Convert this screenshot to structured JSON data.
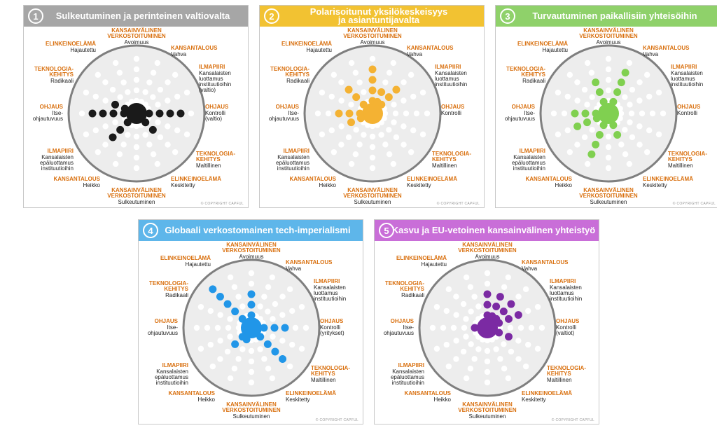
{
  "copyright": "© COPYRIGHT CAPFUL",
  "colors": {
    "orange_label": "#d9700f",
    "ring": "#7f7f7f",
    "disk": "#ededed",
    "ghost_dot": "#ffffff"
  },
  "panels": [
    {
      "number": "1",
      "title_lines": [
        "Sulkeutuminen ja perinteinen valtiovalta"
      ],
      "header_color": "#a6a6a6",
      "dot_color": "#1a1a1a",
      "labels": {
        "top": {
          "name": [
            "KANSAINVÄLINEN",
            "VERKOSTOITUMINEN"
          ],
          "value": [
            "Avoimuus"
          ]
        },
        "top_left": {
          "name": [
            "ELINKEINOELÄMÄ"
          ],
          "value": [
            "Hajautettu"
          ]
        },
        "top_right": {
          "name": [
            "KANSANTALOUS"
          ],
          "value": [
            "Vahva"
          ]
        },
        "upper_left": {
          "name": [
            "TEKNOLOGIA-",
            "KEHITYS"
          ],
          "value": [
            "Radikaali"
          ]
        },
        "upper_right": {
          "name": [
            "ILMAPIIRI"
          ],
          "value": [
            "Kansalaisten",
            "luottamus",
            "instituutioihin",
            "(valtio)"
          ]
        },
        "left": {
          "name": [
            "OHJAUS"
          ],
          "value": [
            "Itse-",
            "ohjautuvuus"
          ]
        },
        "right": {
          "name": [
            "OHJAUS"
          ],
          "value": [
            "Kontrolli",
            "(valtio)"
          ]
        },
        "lower_left": {
          "name": [
            "ILMAPIIRI"
          ],
          "value": [
            "Kansalaisten",
            "epäluottamus",
            "instituutioihin"
          ]
        },
        "lower_right": {
          "name": [
            "TEKNOLOGIA-",
            "KEHITYS"
          ],
          "value": [
            "Maltillinen"
          ]
        },
        "bottom_left": {
          "name": [
            "KANSANTALOUS"
          ],
          "value": [
            "Heikko"
          ]
        },
        "bottom_right": {
          "name": [
            "ELINKEINOELÄMÄ"
          ],
          "value": [
            "Keskitetty"
          ]
        },
        "bottom": {
          "name": [
            "KANSAINVÄLINEN",
            "VERKOSTOITUMINEN"
          ],
          "value": [
            "Sulkeutuminen"
          ]
        }
      },
      "dots": [
        {
          "a": 180,
          "r": 1,
          "b": true
        },
        {
          "a": 180,
          "r": 2
        },
        {
          "a": 180,
          "r": 3
        },
        {
          "a": 180,
          "r": 4
        },
        {
          "a": 180,
          "r": 5
        },
        {
          "a": 0,
          "r": 2
        },
        {
          "a": 0,
          "r": 3
        },
        {
          "a": 0,
          "r": 4
        },
        {
          "a": 0,
          "r": 5
        },
        {
          "a": 45,
          "r": 2
        },
        {
          "a": 45,
          "r": 3
        },
        {
          "a": 135,
          "r": 2
        },
        {
          "a": 135,
          "r": 3
        },
        {
          "a": 135,
          "r": 4
        },
        {
          "a": 202.5,
          "r": 2
        },
        {
          "a": 202.5,
          "r": 3
        }
      ]
    },
    {
      "number": "2",
      "title_lines": [
        "Polarisoitunut yksilökeskeisyys",
        "ja asiantuntijavalta"
      ],
      "header_color": "#f2c232",
      "dot_color": "#f4b233",
      "labels": {
        "top": {
          "name": [
            "KANSAINVÄLINEN",
            "VERKOSTOITUMINEN"
          ],
          "value": [
            "Avoimuus"
          ]
        },
        "top_left": {
          "name": [
            "ELINKEINOELÄMÄ"
          ],
          "value": [
            "Hajautettu"
          ]
        },
        "top_right": {
          "name": [
            "KANSANTALOUS"
          ],
          "value": [
            "Vahva"
          ]
        },
        "upper_left": {
          "name": [
            "TEKNOLOGIA-",
            "KEHITYS"
          ],
          "value": [
            "Radikaali"
          ]
        },
        "upper_right": {
          "name": [
            "ILMAPIIRI"
          ],
          "value": [
            "Kansalaisten",
            "luottamus",
            "instituutioihin"
          ]
        },
        "left": {
          "name": [
            "OHJAUS"
          ],
          "value": [
            "Itse-",
            "ohjautuvuus"
          ]
        },
        "right": {
          "name": [
            "OHJAUS"
          ],
          "value": [
            "Kontrolli"
          ]
        },
        "lower_left": {
          "name": [
            "ILMAPIIRI"
          ],
          "value": [
            "Kansalaisten",
            "epäluottamus",
            "instituutioihin"
          ]
        },
        "lower_right": {
          "name": [
            "TEKNOLOGIA-",
            "KEHITYS"
          ],
          "value": [
            "Maltillinen"
          ]
        },
        "bottom_left": {
          "name": [
            "KANSANTALOUS"
          ],
          "value": [
            "Heikko"
          ]
        },
        "bottom_right": {
          "name": [
            "ELINKEINOELÄMÄ"
          ],
          "value": [
            "Keskitetty"
          ]
        },
        "bottom": {
          "name": [
            "KANSAINVÄLINEN",
            "VERKOSTOITUMINEN"
          ],
          "value": [
            "Sulkeutuminen"
          ]
        }
      },
      "dots": [
        {
          "a": 0,
          "r": 1,
          "b": true
        },
        {
          "a": 270,
          "r": 2
        },
        {
          "a": 270,
          "r": 3
        },
        {
          "a": 270,
          "r": 4
        },
        {
          "a": 270,
          "r": 5
        },
        {
          "a": 180,
          "r": 2
        },
        {
          "a": 180,
          "r": 3
        },
        {
          "a": 180,
          "r": 4
        },
        {
          "a": 225,
          "r": 2
        },
        {
          "a": 225,
          "r": 3
        },
        {
          "a": 225,
          "r": 4
        },
        {
          "a": 315,
          "r": 2
        },
        {
          "a": 315,
          "r": 3
        },
        {
          "a": 315,
          "r": 4
        },
        {
          "a": 292.5,
          "r": 2
        },
        {
          "a": 292.5,
          "r": 3
        },
        {
          "a": 157.5,
          "r": 2
        },
        {
          "a": 157.5,
          "r": 3
        }
      ]
    },
    {
      "number": "3",
      "title_lines": [
        "Turvautuminen paikallisiin yhteisöihin"
      ],
      "header_color": "#8fd16a",
      "dot_color": "#80d050",
      "labels": {
        "top": {
          "name": [
            "KANSAINVÄLINEN",
            "VERKOSTOITUMINEN"
          ],
          "value": [
            "Avoimuus"
          ]
        },
        "top_left": {
          "name": [
            "ELINKEINOELÄMÄ"
          ],
          "value": [
            "Hajautettu"
          ]
        },
        "top_right": {
          "name": [
            "KANSANTALOUS"
          ],
          "value": [
            "Vahva"
          ]
        },
        "upper_left": {
          "name": [
            "TEKNOLOGIA-",
            "KEHITYS"
          ],
          "value": [
            "Radikaali"
          ]
        },
        "upper_right": {
          "name": [
            "ILMAPIIRI"
          ],
          "value": [
            "Kansalaisten",
            "luottamus",
            "instituutioihin"
          ]
        },
        "left": {
          "name": [
            "OHJAUS"
          ],
          "value": [
            "Itse-",
            "ohjautuvuus"
          ]
        },
        "right": {
          "name": [
            "OHJAUS"
          ],
          "value": [
            "Kontrolli"
          ]
        },
        "lower_left": {
          "name": [
            "ILMAPIIRI"
          ],
          "value": [
            "Kansalaisten",
            "epäluottamus",
            "instituutioihin"
          ]
        },
        "lower_right": {
          "name": [
            "TEKNOLOGIA-",
            "KEHITYS"
          ],
          "value": [
            "Maltillinen"
          ]
        },
        "bottom_left": {
          "name": [
            "KANSANTALOUS"
          ],
          "value": [
            "Heikko"
          ]
        },
        "bottom_right": {
          "name": [
            "ELINKEINOELÄMÄ"
          ],
          "value": [
            "Keskitetty"
          ]
        },
        "bottom": {
          "name": [
            "KANSAINVÄLINEN",
            "VERKOSTOITUMINEN"
          ],
          "value": [
            "Sulkeutuminen"
          ]
        }
      },
      "dots": [
        {
          "a": 0,
          "r": 1,
          "b": true
        },
        {
          "a": 180,
          "r": 2
        },
        {
          "a": 180,
          "r": 3
        },
        {
          "a": 180,
          "r": 4
        },
        {
          "a": 292.5,
          "r": 2
        },
        {
          "a": 292.5,
          "r": 3
        },
        {
          "a": 292.5,
          "r": 4
        },
        {
          "a": 292.5,
          "r": 5
        },
        {
          "a": 247.5,
          "r": 2
        },
        {
          "a": 247.5,
          "r": 3
        },
        {
          "a": 247.5,
          "r": 4
        },
        {
          "a": 112.5,
          "r": 2
        },
        {
          "a": 112.5,
          "r": 3
        },
        {
          "a": 112.5,
          "r": 4
        },
        {
          "a": 112.5,
          "r": 5
        },
        {
          "a": 67.5,
          "r": 2
        },
        {
          "a": 67.5,
          "r": 3
        },
        {
          "a": 157.5,
          "r": 2
        },
        {
          "a": 157.5,
          "r": 3
        },
        {
          "a": 157.5,
          "r": 4
        }
      ]
    },
    {
      "number": "4",
      "title_lines": [
        "Globaali verkostomainen tech-imperialismi"
      ],
      "header_color": "#5eb6ea",
      "dot_color": "#2196e8",
      "labels": {
        "top": {
          "name": [
            "KANSAINVÄLINEN",
            "VERKOSTOITUMINEN"
          ],
          "value": [
            "Avoimuus"
          ]
        },
        "top_left": {
          "name": [
            "ELINKEINOELÄMÄ"
          ],
          "value": [
            "Hajautettu"
          ]
        },
        "top_right": {
          "name": [
            "KANSANTALOUS"
          ],
          "value": [
            "Vahva"
          ]
        },
        "upper_left": {
          "name": [
            "TEKNOLOGIA-",
            "KEHITYS"
          ],
          "value": [
            "Radikaali"
          ]
        },
        "upper_right": {
          "name": [
            "ILMAPIIRI"
          ],
          "value": [
            "Kansalaisten",
            "luottamus",
            "instituutioihin"
          ]
        },
        "left": {
          "name": [
            "OHJAUS"
          ],
          "value": [
            "Itse-",
            "ohjautuvuus"
          ]
        },
        "right": {
          "name": [
            "OHJAUS"
          ],
          "value": [
            "Kontrolli",
            "(yritykset)"
          ]
        },
        "lower_left": {
          "name": [
            "ILMAPIIRI"
          ],
          "value": [
            "Kansalaisten",
            "epäluottamus",
            "instituutioihin"
          ]
        },
        "lower_right": {
          "name": [
            "TEKNOLOGIA-",
            "KEHITYS"
          ],
          "value": [
            "Maltillinen"
          ]
        },
        "bottom_left": {
          "name": [
            "KANSANTALOUS"
          ],
          "value": [
            "Heikko"
          ]
        },
        "bottom_right": {
          "name": [
            "ELINKEINOELÄMÄ"
          ],
          "value": [
            "Keskitetty"
          ]
        },
        "bottom": {
          "name": [
            "KANSAINVÄLINEN",
            "VERKOSTOITUMINEN"
          ],
          "value": [
            "Sulkeutuminen"
          ]
        }
      },
      "dots": [
        {
          "a": 0,
          "r": 1,
          "b": true
        },
        {
          "a": 0,
          "r": 2
        },
        {
          "a": 0,
          "r": 3
        },
        {
          "a": 0,
          "r": 4
        },
        {
          "a": 270,
          "r": 2
        },
        {
          "a": 270,
          "r": 3
        },
        {
          "a": 270,
          "r": 4
        },
        {
          "a": 225,
          "r": 2
        },
        {
          "a": 225,
          "r": 3
        },
        {
          "a": 225,
          "r": 4
        },
        {
          "a": 225,
          "r": 5
        },
        {
          "a": 225,
          "r": 6
        },
        {
          "a": 135,
          "r": 2
        },
        {
          "a": 135,
          "r": 3
        },
        {
          "a": 45,
          "r": 2
        },
        {
          "a": 45,
          "r": 3
        },
        {
          "a": 45,
          "r": 4
        },
        {
          "a": 45,
          "r": 5
        },
        {
          "a": 112.5,
          "r": 2
        }
      ]
    },
    {
      "number": "5",
      "title_lines": [
        "Kasvu ja EU-vetoinen kansainvälinen yhteistyö"
      ],
      "header_color": "#c96ed8",
      "dot_color": "#7b2aa3",
      "labels": {
        "top": {
          "name": [
            "KANSAINVÄLINEN",
            "VERKOSTOITUMINEN"
          ],
          "value": [
            "Avoimuus"
          ]
        },
        "top_left": {
          "name": [
            "ELINKEINOELÄMÄ"
          ],
          "value": [
            "Hajautettu"
          ]
        },
        "top_right": {
          "name": [
            "KANSANTALOUS"
          ],
          "value": [
            "Vahva"
          ]
        },
        "upper_left": {
          "name": [
            "TEKNOLOGIA-",
            "KEHITYS"
          ],
          "value": [
            "Radikaali"
          ]
        },
        "upper_right": {
          "name": [
            "ILMAPIIRI"
          ],
          "value": [
            "Kansalaisten",
            "luottamus",
            "instituutioihin"
          ]
        },
        "left": {
          "name": [
            "OHJAUS"
          ],
          "value": [
            "Itse-",
            "ohjautuvuus"
          ]
        },
        "right": {
          "name": [
            "OHJAUS"
          ],
          "value": [
            "Kontrolli",
            "(valtiot)"
          ]
        },
        "lower_left": {
          "name": [
            "ILMAPIIRI"
          ],
          "value": [
            "Kansalaisten",
            "epäluottamus",
            "instituutioihin"
          ]
        },
        "lower_right": {
          "name": [
            "TEKNOLOGIA-",
            "KEHITYS"
          ],
          "value": [
            "Maltillinen"
          ]
        },
        "bottom_left": {
          "name": [
            "KANSANTALOUS"
          ],
          "value": [
            "Heikko"
          ]
        },
        "bottom_right": {
          "name": [
            "ELINKEINOELÄMÄ"
          ],
          "value": [
            "Keskitetty"
          ]
        },
        "bottom": {
          "name": [
            "KANSAINVÄLINEN",
            "VERKOSTOITUMINEN"
          ],
          "value": [
            "Sulkeutuminen"
          ]
        }
      },
      "dots": [
        {
          "a": 0,
          "r": 1,
          "b": true
        },
        {
          "a": 270,
          "r": 2
        },
        {
          "a": 270,
          "r": 3
        },
        {
          "a": 270,
          "r": 4
        },
        {
          "a": 292.5,
          "r": 2
        },
        {
          "a": 292.5,
          "r": 3
        },
        {
          "a": 292.5,
          "r": 4
        },
        {
          "a": 315,
          "r": 2
        },
        {
          "a": 315,
          "r": 3
        },
        {
          "a": 315,
          "r": 4
        },
        {
          "a": 337.5,
          "r": 2
        },
        {
          "a": 337.5,
          "r": 3
        },
        {
          "a": 337.5,
          "r": 4
        },
        {
          "a": 22.5,
          "r": 2
        },
        {
          "a": 22.5,
          "r": 3
        },
        {
          "a": 180,
          "r": 2
        }
      ]
    }
  ]
}
